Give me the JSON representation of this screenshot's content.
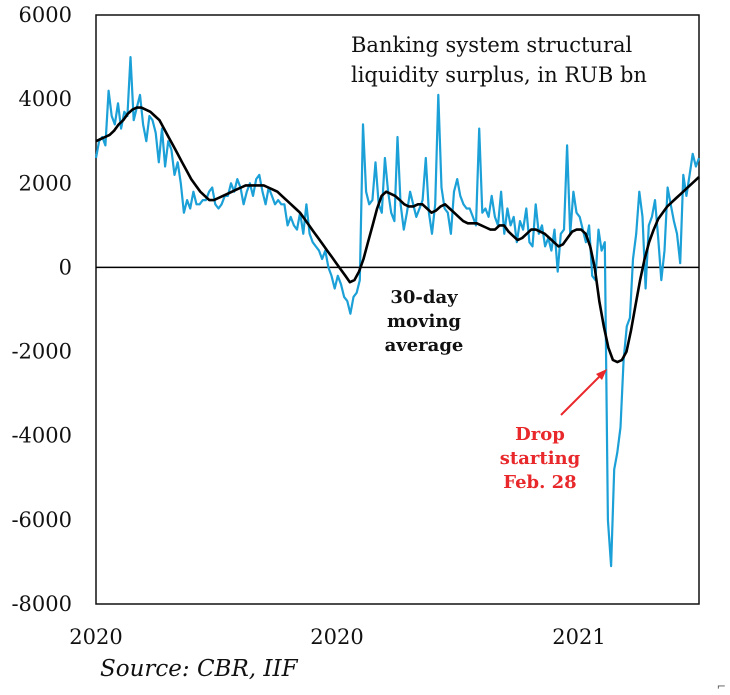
{
  "chart_data": {
    "type": "line",
    "title_lines": [
      "Banking system structural",
      "liquidity surplus, in RUB bn"
    ],
    "x_tick_labels": [
      "2020",
      "2020",
      "2021"
    ],
    "ylim": [
      -8000,
      6000
    ],
    "y_ticks": [
      6000,
      4000,
      2000,
      0,
      -2000,
      -4000,
      -6000,
      -8000
    ],
    "y_tick_labels": [
      "6000",
      "4000",
      "2000",
      "0",
      "-2000",
      "-4000",
      "-6000",
      "-8000"
    ],
    "source": "Source: CBR, IIF",
    "annotations": {
      "moving_average": [
        "30-day",
        "moving",
        "average"
      ],
      "drop": [
        "Drop",
        "starting",
        "Feb. 28"
      ]
    },
    "colors": {
      "daily": "#1ba0d7",
      "moving_average": "#000000",
      "annotation_drop": "#e8282b",
      "zero_line": "#000000"
    },
    "series": [
      {
        "role": "daily",
        "values": [
          2600,
          3000,
          3100,
          2900,
          4200,
          3600,
          3400,
          3900,
          3300,
          3700,
          3600,
          5000,
          3500,
          3800,
          4100,
          3400,
          3000,
          3600,
          3500,
          3200,
          2500,
          3300,
          2400,
          3000,
          2800,
          2200,
          2500,
          2000,
          1300,
          1600,
          1400,
          1800,
          1500,
          1500,
          1600,
          1600,
          1800,
          1900,
          1500,
          1400,
          1500,
          1700,
          1700,
          2000,
          1800,
          2100,
          1900,
          1500,
          1800,
          2000,
          1700,
          2100,
          2200,
          1800,
          1500,
          1900,
          1700,
          1500,
          1600,
          1500,
          1500,
          1000,
          1200,
          1000,
          900,
          1300,
          800,
          1500,
          800,
          600,
          500,
          400,
          200,
          400,
          0,
          -200,
          -500,
          -200,
          -400,
          -700,
          -800,
          -1100,
          -700,
          -600,
          -300,
          3400,
          1800,
          1500,
          1600,
          2500,
          1500,
          1300,
          2600,
          1800,
          1300,
          1100,
          3100,
          1500,
          900,
          1300,
          1800,
          1500,
          1200,
          1400,
          1600,
          2600,
          1300,
          800,
          1500,
          4100,
          1900,
          1400,
          1300,
          800,
          1800,
          2100,
          1700,
          1500,
          1400,
          1400,
          1200,
          1000,
          3300,
          1300,
          1400,
          1200,
          1700,
          1200,
          1000,
          1800,
          800,
          1400,
          1000,
          1200,
          600,
          1100,
          900,
          1400,
          600,
          500,
          1500,
          800,
          1000,
          500,
          700,
          400,
          900,
          -100,
          800,
          900,
          2900,
          800,
          1800,
          1300,
          1200,
          900,
          600,
          1000,
          -200,
          -300,
          900,
          400,
          600,
          -6000,
          -7100,
          -4800,
          -4400,
          -3800,
          -2200,
          -1400,
          -1200,
          200,
          800,
          1800,
          1200,
          -500,
          1000,
          1200,
          1600,
          700,
          -300,
          400,
          1900,
          1500,
          1100,
          800,
          100,
          2200,
          1700,
          2200,
          2700,
          2400,
          2600
        ]
      },
      {
        "role": "moving_average",
        "values": [
          3000,
          3050,
          3100,
          3150,
          3250,
          3400,
          3500,
          3650,
          3750,
          3800,
          3800,
          3750,
          3700,
          3600,
          3500,
          3300,
          3100,
          2900,
          2700,
          2500,
          2300,
          2100,
          1950,
          1800,
          1700,
          1600,
          1600,
          1650,
          1700,
          1750,
          1800,
          1850,
          1900,
          1950,
          1950,
          1950,
          1950,
          1950,
          1900,
          1850,
          1800,
          1700,
          1600,
          1500,
          1400,
          1300,
          1150,
          1000,
          850,
          700,
          550,
          400,
          250,
          100,
          -50,
          -200,
          -350,
          -300,
          -100,
          200,
          600,
          1000,
          1400,
          1700,
          1800,
          1750,
          1700,
          1600,
          1500,
          1450,
          1450,
          1500,
          1500,
          1400,
          1300,
          1350,
          1450,
          1500,
          1400,
          1300,
          1200,
          1100,
          1050,
          1050,
          1050,
          1000,
          950,
          900,
          900,
          1000,
          1000,
          850,
          750,
          650,
          700,
          800,
          900,
          900,
          850,
          800,
          700,
          600,
          500,
          550,
          700,
          850,
          900,
          900,
          800,
          500,
          0,
          -800,
          -1400,
          -1900,
          -2200,
          -2250,
          -2200,
          -2000,
          -1500,
          -900,
          -300,
          200,
          600,
          900,
          1150,
          1300,
          1450,
          1550,
          1650,
          1750,
          1850,
          1950,
          2050,
          2150
        ]
      }
    ]
  }
}
